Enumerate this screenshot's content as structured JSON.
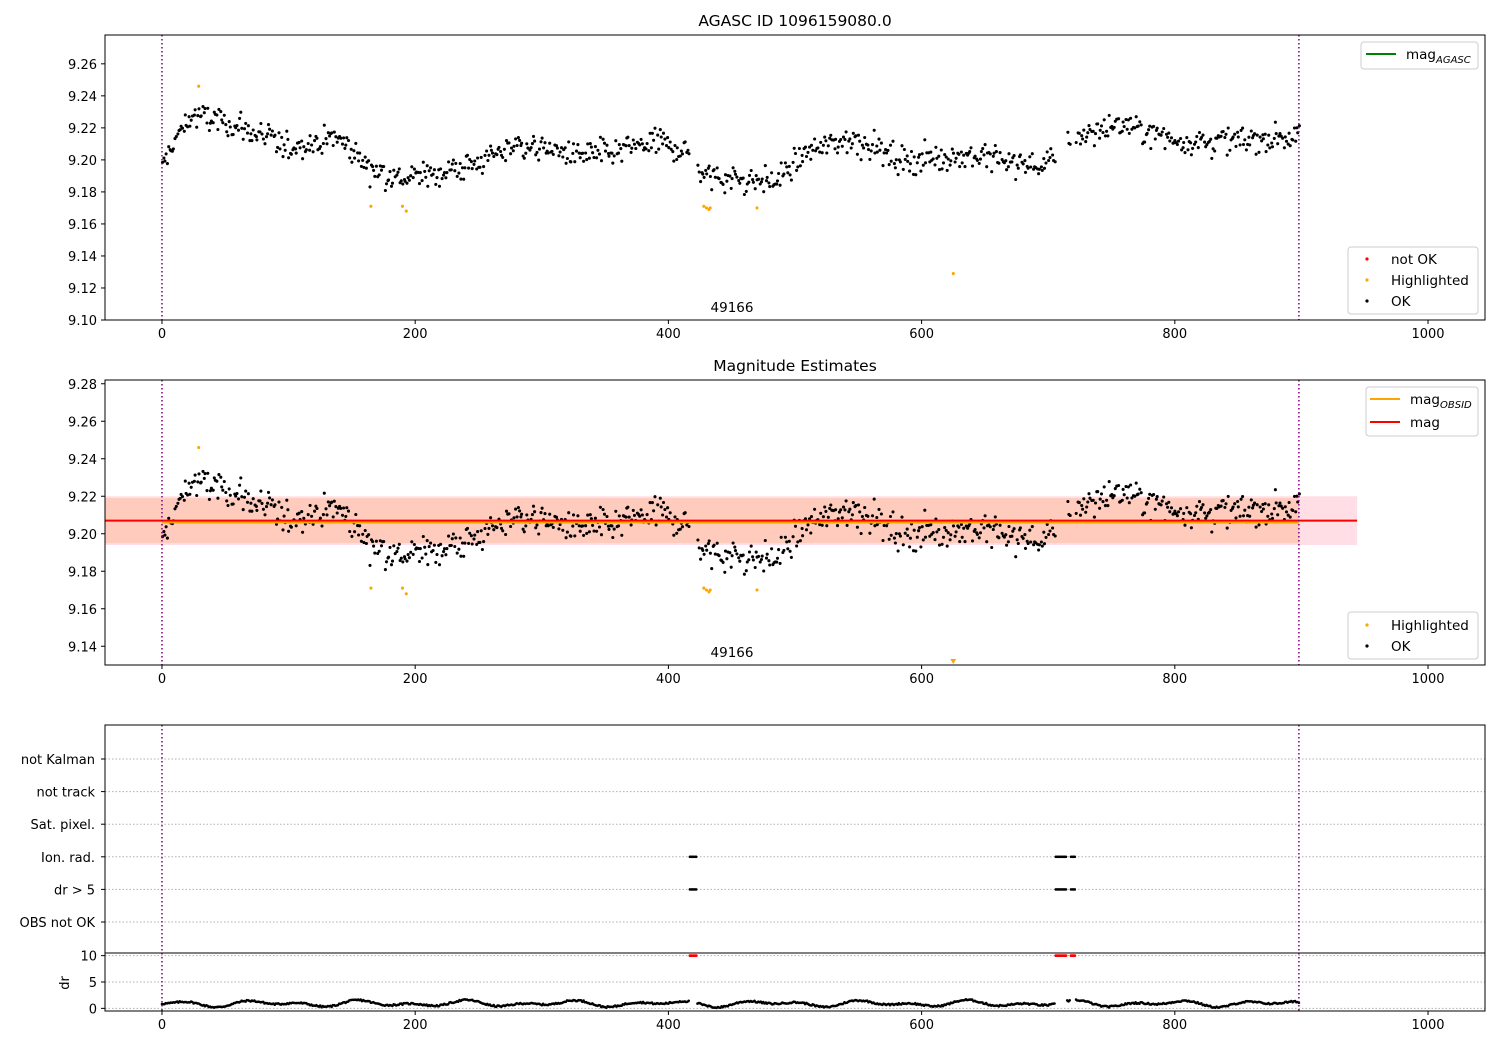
{
  "colors": {
    "ok": "#000000",
    "highlighted": "#ffa500",
    "not_ok": "#ff0000",
    "mag_agasc": "#008000",
    "mag_obsid": "#ffa500",
    "mag": "#ff0000",
    "band_red": "#ffc0cb",
    "band_orange": "#ffb38a",
    "vline": "#800080",
    "grid": "#b0b0b0"
  },
  "chart_data": [
    {
      "type": "scatter",
      "title": "AGASC ID 1096159080.0",
      "xlim": [
        -45,
        1045
      ],
      "ylim": [
        9.1,
        9.278
      ],
      "xticks": [
        0,
        200,
        400,
        600,
        800,
        1000
      ],
      "yticks": [
        9.1,
        9.12,
        9.14,
        9.16,
        9.18,
        9.2,
        9.22,
        9.24,
        9.26
      ],
      "ytick_labels": [
        "9.10",
        "9.12",
        "9.14",
        "9.16",
        "9.18",
        "9.20",
        "9.22",
        "9.24",
        "9.26"
      ],
      "annotation": {
        "text": "49166",
        "x": 449,
        "y": 9.103
      },
      "vlines": [
        0,
        898
      ],
      "legend_lines": [
        {
          "name": "mag_AGASC",
          "base": "mag",
          "sub": "AGASC",
          "color": "#008000"
        }
      ],
      "legend_points": [
        {
          "name": "not OK",
          "color": "#ff0000"
        },
        {
          "name": "Highlighted",
          "color": "#ffa500"
        },
        {
          "name": "OK",
          "color": "#000000"
        }
      ],
      "highlighted": [
        [
          29,
          9.246
        ],
        [
          165,
          9.171
        ],
        [
          190,
          9.171
        ],
        [
          193,
          9.168
        ],
        [
          428,
          9.171
        ],
        [
          430,
          9.17
        ],
        [
          432,
          9.169
        ],
        [
          433,
          9.17
        ],
        [
          470,
          9.17
        ],
        [
          625,
          9.129
        ]
      ]
    },
    {
      "type": "scatter",
      "title": "Magnitude Estimates",
      "xlim": [
        -45,
        1045
      ],
      "ylim": [
        9.13,
        9.282
      ],
      "xticks": [
        0,
        200,
        400,
        600,
        800,
        1000
      ],
      "yticks": [
        9.14,
        9.16,
        9.18,
        9.2,
        9.22,
        9.24,
        9.26,
        9.28
      ],
      "ytick_labels": [
        "9.14",
        "9.16",
        "9.18",
        "9.20",
        "9.22",
        "9.24",
        "9.26",
        "9.28"
      ],
      "annotation": {
        "text": "49166",
        "x": 449,
        "y": 9.133
      },
      "vlines": [
        0,
        898
      ],
      "mag": 9.207,
      "mag_obsid": 9.206,
      "band_red": [
        9.194,
        9.22,
        -45,
        944
      ],
      "band_orange": [
        9.195,
        9.219,
        -45,
        898
      ],
      "legend_lines": [
        {
          "name": "mag_OBSID",
          "base": "mag",
          "sub": "OBSID",
          "color": "#ffa500"
        },
        {
          "name": "mag",
          "base": "mag",
          "sub": "",
          "color": "#ff0000"
        }
      ],
      "legend_points": [
        {
          "name": "Highlighted",
          "color": "#ffa500"
        },
        {
          "name": "OK",
          "color": "#000000"
        }
      ],
      "highlighted": [
        [
          29,
          9.246
        ],
        [
          165,
          9.171
        ],
        [
          190,
          9.171
        ],
        [
          193,
          9.168
        ],
        [
          428,
          9.171
        ],
        [
          430,
          9.17
        ],
        [
          432,
          9.169
        ],
        [
          433,
          9.17
        ],
        [
          470,
          9.17
        ],
        [
          625,
          9.133
        ]
      ]
    },
    {
      "type": "scatter",
      "title": "",
      "xlim": [
        -45,
        1045
      ],
      "categories": [
        "not Kalman",
        "not track",
        "Sat. pixel.",
        "Ion. rad.",
        "dr > 5",
        "OBS not OK"
      ],
      "vlines": [
        0,
        898
      ],
      "flag_points": [
        {
          "category": "Ion. rad.",
          "x": [
            417,
            418,
            419,
            420,
            421,
            422,
            706,
            707,
            708,
            709,
            710,
            711,
            712,
            713,
            714,
            718,
            719,
            720,
            721
          ]
        },
        {
          "category": "dr > 5",
          "x": [
            417,
            418,
            419,
            420,
            421,
            422,
            706,
            707,
            708,
            709,
            710,
            711,
            712,
            713,
            714,
            718,
            719,
            720,
            721
          ]
        }
      ]
    },
    {
      "type": "scatter",
      "title": "",
      "ylabel": "dr",
      "xlim": [
        -45,
        1045
      ],
      "ylim": [
        -0.5,
        10.5
      ],
      "xticks": [
        0,
        200,
        400,
        600,
        800,
        1000
      ],
      "yticks": [
        0,
        5,
        10
      ],
      "ytick_labels": [
        "0",
        "5",
        "10"
      ],
      "vlines": [
        0,
        898
      ],
      "not_ok_x": [
        417,
        418,
        419,
        420,
        421,
        422,
        706,
        707,
        708,
        709,
        710,
        711,
        712,
        713,
        714,
        718,
        719,
        720,
        721
      ],
      "not_ok_y": 10,
      "gaps": [
        [
          417,
          422
        ],
        [
          706,
          714
        ],
        [
          718,
          721
        ]
      ]
    }
  ]
}
